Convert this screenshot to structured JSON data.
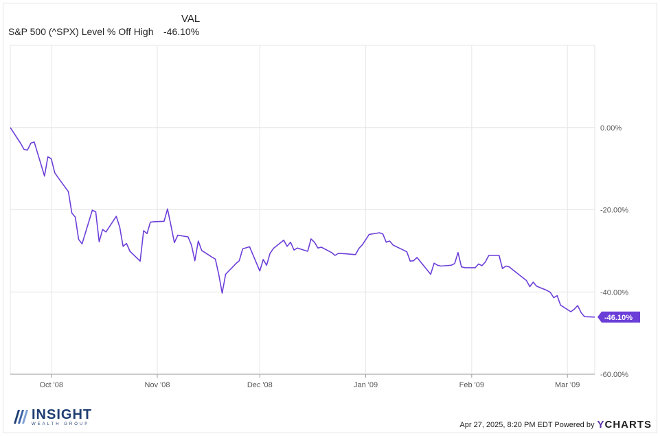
{
  "legend": {
    "value_header": "VAL",
    "series_name": "S&P 500 (^SPX) Level % Off High",
    "series_value": "-46.10%"
  },
  "chart_data": {
    "type": "line",
    "title": "",
    "xlabel": "",
    "ylabel": "",
    "x_tick_labels": [
      "Oct '08",
      "Nov '08",
      "Dec '08",
      "Jan '09",
      "Feb '09",
      "Mar '09"
    ],
    "x_tick_dates": [
      "2008-10-01",
      "2008-11-01",
      "2008-12-01",
      "2009-01-01",
      "2009-02-01",
      "2009-03-01"
    ],
    "xlim": [
      "2008-09-19",
      "2009-03-09"
    ],
    "y_tick_labels": [
      "0.00%",
      "-20.00%",
      "-40.00%",
      "-60.00%"
    ],
    "y_tick_values": [
      0,
      -20,
      -40,
      -60
    ],
    "ylim": [
      -60,
      20
    ],
    "y_axis_side": "right",
    "grid": true,
    "color": "#6c3ed8",
    "last_value_label": "-46.10%",
    "series": [
      {
        "x": [
          "2008-09-19",
          "2008-09-22",
          "2008-09-23",
          "2008-09-24",
          "2008-09-25",
          "2008-09-26",
          "2008-09-29",
          "2008-09-30",
          "2008-10-01",
          "2008-10-02",
          "2008-10-03",
          "2008-10-06",
          "2008-10-07",
          "2008-10-08",
          "2008-10-09",
          "2008-10-10",
          "2008-10-13",
          "2008-10-14",
          "2008-10-15",
          "2008-10-16",
          "2008-10-17",
          "2008-10-20",
          "2008-10-21",
          "2008-10-22",
          "2008-10-23",
          "2008-10-24",
          "2008-10-27",
          "2008-10-28",
          "2008-10-29",
          "2008-10-30",
          "2008-10-31",
          "2008-11-03",
          "2008-11-04",
          "2008-11-05",
          "2008-11-06",
          "2008-11-07",
          "2008-11-10",
          "2008-11-11",
          "2008-11-12",
          "2008-11-13",
          "2008-11-14",
          "2008-11-17",
          "2008-11-18",
          "2008-11-19",
          "2008-11-20",
          "2008-11-21",
          "2008-11-24",
          "2008-11-25",
          "2008-11-26",
          "2008-11-28",
          "2008-12-01",
          "2008-12-02",
          "2008-12-03",
          "2008-12-04",
          "2008-12-05",
          "2008-12-08",
          "2008-12-09",
          "2008-12-10",
          "2008-12-11",
          "2008-12-12",
          "2008-12-15",
          "2008-12-16",
          "2008-12-17",
          "2008-12-18",
          "2008-12-19",
          "2008-12-22",
          "2008-12-23",
          "2008-12-24",
          "2008-12-26",
          "2008-12-29",
          "2008-12-30",
          "2008-12-31",
          "2009-01-02",
          "2009-01-05",
          "2009-01-06",
          "2009-01-07",
          "2009-01-08",
          "2009-01-09",
          "2009-01-12",
          "2009-01-13",
          "2009-01-14",
          "2009-01-15",
          "2009-01-16",
          "2009-01-20",
          "2009-01-21",
          "2009-01-22",
          "2009-01-23",
          "2009-01-26",
          "2009-01-27",
          "2009-01-28",
          "2009-01-29",
          "2009-01-30",
          "2009-02-02",
          "2009-02-03",
          "2009-02-04",
          "2009-02-05",
          "2009-02-06",
          "2009-02-09",
          "2009-02-10",
          "2009-02-11",
          "2009-02-12",
          "2009-02-13",
          "2009-02-17",
          "2009-02-18",
          "2009-02-19",
          "2009-02-20",
          "2009-02-23",
          "2009-02-24",
          "2009-02-25",
          "2009-02-26",
          "2009-02-27",
          "2009-03-02",
          "2009-03-03",
          "2009-03-04",
          "2009-03-05",
          "2009-03-06",
          "2009-03-09"
        ],
        "values": [
          0.0,
          -3.8,
          -5.3,
          -5.5,
          -3.8,
          -3.5,
          -11.8,
          -7.1,
          -7.6,
          -11.0,
          -12.2,
          -15.6,
          -20.8,
          -21.8,
          -27.2,
          -28.3,
          -20.1,
          -20.5,
          -27.8,
          -24.8,
          -25.4,
          -21.6,
          -24.2,
          -28.9,
          -28.2,
          -30.1,
          -32.5,
          -25.1,
          -25.8,
          -23.0,
          -22.9,
          -22.8,
          -19.8,
          -23.8,
          -28.0,
          -26.2,
          -26.6,
          -28.6,
          -32.4,
          -27.6,
          -29.9,
          -31.5,
          -32.0,
          -35.8,
          -40.3,
          -35.7,
          -33.1,
          -32.4,
          -29.5,
          -29.0,
          -34.9,
          -32.1,
          -33.5,
          -30.6,
          -29.4,
          -27.4,
          -28.9,
          -27.9,
          -29.8,
          -29.3,
          -30.1,
          -27.1,
          -27.9,
          -29.3,
          -29.1,
          -30.4,
          -31.1,
          -30.6,
          -30.7,
          -30.9,
          -29.4,
          -28.5,
          -26.0,
          -25.6,
          -25.9,
          -27.9,
          -27.6,
          -28.6,
          -29.8,
          -30.2,
          -32.5,
          -32.4,
          -31.6,
          -35.7,
          -33.0,
          -33.5,
          -33.7,
          -33.5,
          -33.1,
          -30.4,
          -33.9,
          -34.1,
          -34.1,
          -33.2,
          -33.6,
          -32.7,
          -31.1,
          -31.1,
          -34.3,
          -33.7,
          -33.9,
          -34.6,
          -37.2,
          -38.7,
          -37.6,
          -38.6,
          -39.6,
          -40.1,
          -41.4,
          -40.9,
          -43.2,
          -44.8,
          -44.2,
          -43.3,
          -45.0,
          -46.0,
          -46.1
        ]
      }
    ]
  },
  "logo": {
    "name": "INSIGHT",
    "sub": "WEALTH GROUP"
  },
  "footer": {
    "timestamp": "Apr 27, 2025, 8:20 PM EDT Powered by",
    "brand_y": "Y",
    "brand_rest": "CHARTS"
  }
}
